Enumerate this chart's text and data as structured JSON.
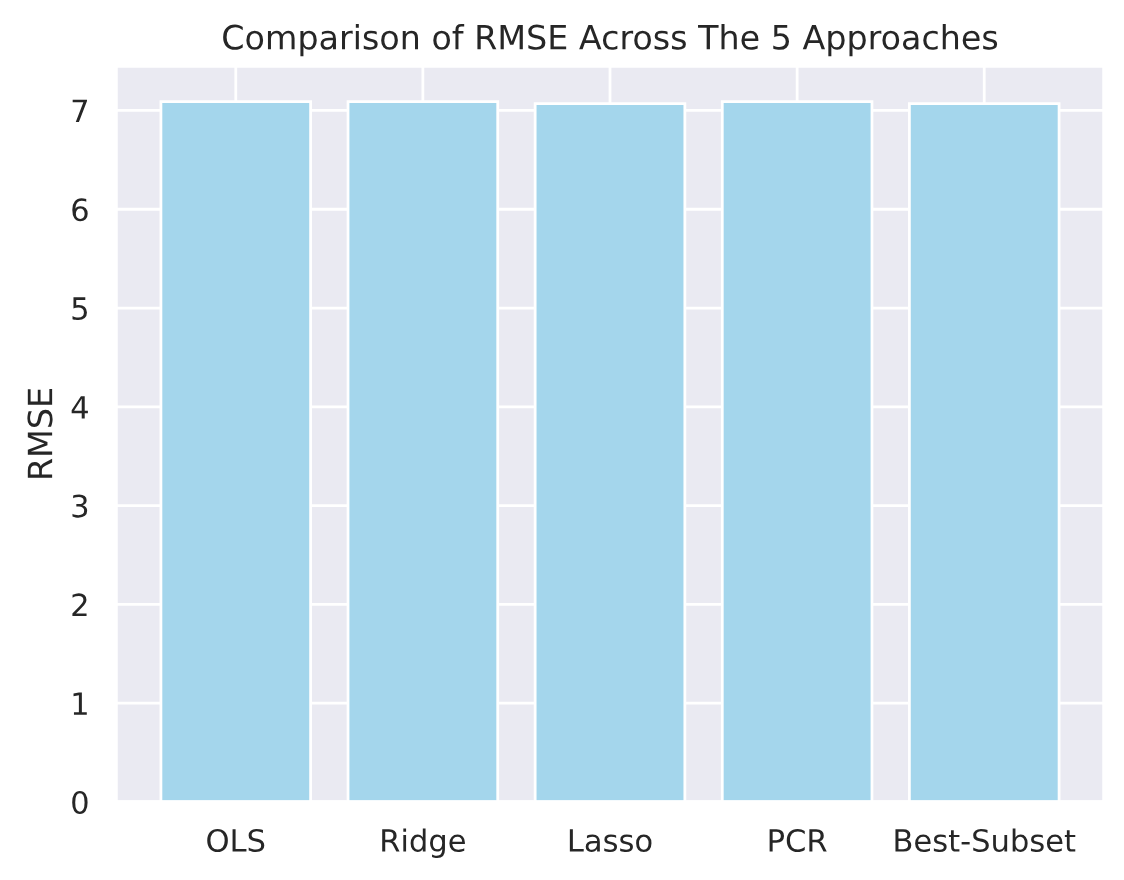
{
  "chart_data": {
    "type": "bar",
    "title": "Comparison of RMSE Across The 5 Approaches",
    "ylabel": "RMSE",
    "categories": [
      "OLS",
      "Ridge",
      "Lasso",
      "PCR",
      "Best-Subset"
    ],
    "values": [
      7.09,
      7.09,
      7.07,
      7.09,
      7.07
    ],
    "color": "#a4d6ec",
    "ylim": [
      0,
      7.45
    ],
    "yticks": [
      0,
      1,
      2,
      3,
      4,
      5,
      6,
      7
    ],
    "grid": true
  }
}
